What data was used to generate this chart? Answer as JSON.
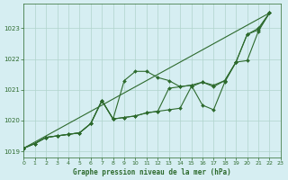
{
  "title": "Graphe pression niveau de la mer (hPa)",
  "bg_color": "#d6eef2",
  "grid_color": "#b0d4cc",
  "line_color": "#2d6a2d",
  "xlim": [
    0,
    23
  ],
  "ylim": [
    1018.8,
    1023.8
  ],
  "yticks": [
    1019,
    1020,
    1021,
    1022,
    1023
  ],
  "xticks": [
    0,
    1,
    2,
    3,
    4,
    5,
    6,
    7,
    8,
    9,
    10,
    11,
    12,
    13,
    14,
    15,
    16,
    17,
    18,
    19,
    20,
    21,
    22,
    23
  ],
  "line1_x": [
    0,
    1,
    2,
    3,
    4,
    5,
    6,
    7,
    8,
    9,
    10,
    11,
    12,
    13,
    14,
    15,
    16,
    17,
    18,
    19,
    20,
    21,
    22
  ],
  "line1_y": [
    1019.1,
    1019.25,
    1019.45,
    1019.5,
    1019.55,
    1019.6,
    1019.9,
    1020.65,
    1020.05,
    1021.3,
    1021.6,
    1021.6,
    1021.4,
    1021.3,
    1021.1,
    1021.15,
    1021.25,
    1021.15,
    1021.3,
    1021.9,
    1022.8,
    1023.0,
    1023.5
  ],
  "line2_x": [
    0,
    1,
    2,
    3,
    4,
    5,
    6,
    7,
    8,
    9,
    10,
    11,
    12,
    13,
    14,
    15,
    16,
    17,
    18,
    19,
    20,
    21,
    22
  ],
  "line2_y": [
    1019.1,
    1019.25,
    1019.45,
    1019.5,
    1019.55,
    1019.6,
    1019.9,
    1020.65,
    1020.05,
    1020.1,
    1020.15,
    1020.25,
    1020.3,
    1020.35,
    1020.4,
    1021.1,
    1021.25,
    1021.1,
    1021.3,
    1021.9,
    1021.95,
    1022.9,
    1023.5
  ],
  "line3_x": [
    0,
    1,
    2,
    3,
    4,
    5,
    6,
    7,
    8,
    9,
    10,
    11,
    12,
    13,
    14,
    15,
    16,
    17,
    18,
    19,
    20,
    21,
    22
  ],
  "line3_y": [
    1019.1,
    1019.25,
    1019.45,
    1019.5,
    1019.55,
    1019.6,
    1019.9,
    1020.65,
    1020.05,
    1020.1,
    1020.15,
    1020.25,
    1020.3,
    1021.05,
    1021.1,
    1021.15,
    1020.5,
    1020.35,
    1021.25,
    1021.9,
    1022.8,
    1022.95,
    1023.5
  ],
  "line4_x": [
    0,
    22
  ],
  "line4_y": [
    1019.1,
    1023.5
  ]
}
